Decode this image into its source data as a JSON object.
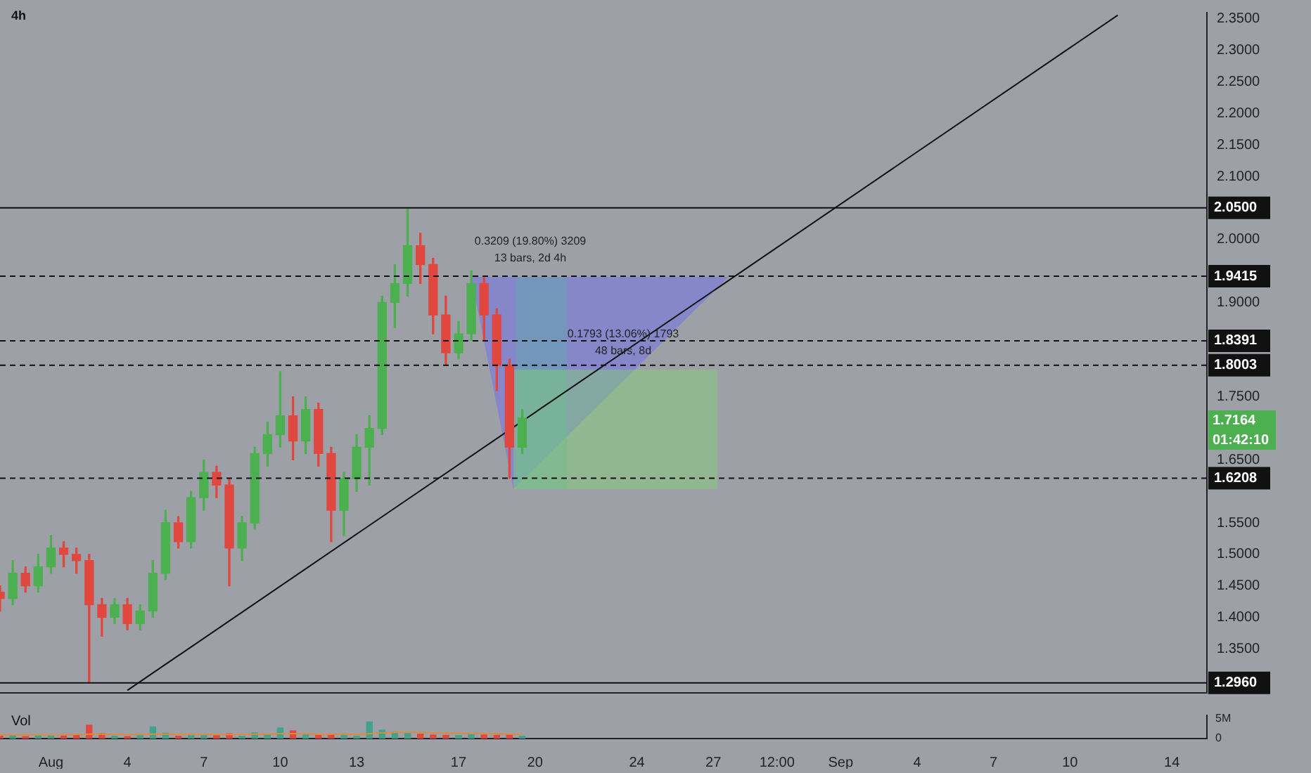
{
  "chart_data": [
    {
      "type": "candlestick",
      "title": "4h",
      "x": [
        "--07-30T00:00",
        "--07-30T12:00",
        "--07-31T00:00",
        "--07-31T12:00",
        "--08-01T00:00",
        "--08-01T12:00",
        "--08-02T00:00",
        "--08-02T12:00",
        "--08-03T00:00",
        "--08-03T12:00",
        "--08-04T00:00",
        "--08-04T12:00",
        "--08-05T00:00",
        "--08-05T12:00",
        "--08-06T00:00",
        "--08-06T12:00",
        "--08-07T00:00",
        "--08-07T12:00",
        "--08-08T00:00",
        "--08-08T12:00",
        "--08-09T00:00",
        "--08-09T12:00",
        "--08-10T00:00",
        "--08-10T12:00",
        "--08-11T00:00",
        "--08-11T12:00",
        "--08-12T00:00",
        "--08-12T12:00",
        "--08-13T00:00",
        "--08-13T12:00",
        "--08-14T00:00",
        "--08-14T12:00",
        "--08-15T00:00",
        "--08-15T12:00",
        "--08-16T00:00",
        "--08-16T12:00",
        "--08-17T00:00",
        "--08-17T12:00",
        "--08-18T00:00",
        "--08-18T12:00",
        "--08-19T00:00",
        "--08-19T12:00"
      ],
      "ohlc": [
        [
          1.44,
          1.45,
          1.41,
          1.43
        ],
        [
          1.43,
          1.49,
          1.42,
          1.47
        ],
        [
          1.47,
          1.48,
          1.44,
          1.45
        ],
        [
          1.45,
          1.5,
          1.44,
          1.48
        ],
        [
          1.48,
          1.53,
          1.47,
          1.51
        ],
        [
          1.51,
          1.52,
          1.48,
          1.5
        ],
        [
          1.5,
          1.51,
          1.47,
          1.49
        ],
        [
          1.49,
          1.5,
          1.296,
          1.42
        ],
        [
          1.42,
          1.43,
          1.37,
          1.4
        ],
        [
          1.4,
          1.43,
          1.39,
          1.42
        ],
        [
          1.42,
          1.43,
          1.38,
          1.39
        ],
        [
          1.39,
          1.42,
          1.38,
          1.41
        ],
        [
          1.41,
          1.49,
          1.4,
          1.47
        ],
        [
          1.47,
          1.57,
          1.46,
          1.55
        ],
        [
          1.55,
          1.56,
          1.51,
          1.52
        ],
        [
          1.52,
          1.6,
          1.51,
          1.59
        ],
        [
          1.59,
          1.65,
          1.57,
          1.63
        ],
        [
          1.63,
          1.64,
          1.59,
          1.61
        ],
        [
          1.61,
          1.62,
          1.45,
          1.51
        ],
        [
          1.51,
          1.56,
          1.49,
          1.55
        ],
        [
          1.55,
          1.67,
          1.54,
          1.66
        ],
        [
          1.66,
          1.71,
          1.64,
          1.69
        ],
        [
          1.69,
          1.79,
          1.67,
          1.72
        ],
        [
          1.72,
          1.75,
          1.65,
          1.68
        ],
        [
          1.68,
          1.75,
          1.66,
          1.73
        ],
        [
          1.73,
          1.74,
          1.64,
          1.66
        ],
        [
          1.66,
          1.67,
          1.52,
          1.57
        ],
        [
          1.57,
          1.63,
          1.53,
          1.62
        ],
        [
          1.62,
          1.69,
          1.6,
          1.67
        ],
        [
          1.67,
          1.72,
          1.61,
          1.7
        ],
        [
          1.7,
          1.91,
          1.69,
          1.9
        ],
        [
          1.9,
          1.96,
          1.86,
          1.93
        ],
        [
          1.93,
          2.05,
          1.91,
          1.99
        ],
        [
          1.99,
          2.01,
          1.93,
          1.96
        ],
        [
          1.96,
          1.97,
          1.85,
          1.88
        ],
        [
          1.88,
          1.91,
          1.8,
          1.82
        ],
        [
          1.82,
          1.87,
          1.81,
          1.85
        ],
        [
          1.85,
          1.95,
          1.84,
          1.93
        ],
        [
          1.93,
          1.94,
          1.84,
          1.88
        ],
        [
          1.88,
          1.89,
          1.76,
          1.8
        ],
        [
          1.8,
          1.81,
          1.6208,
          1.67
        ],
        [
          1.67,
          1.73,
          1.66,
          1.7164
        ]
      ],
      "colors": [
        "#e0483f",
        "#4caf50",
        "#e0483f",
        "#4caf50",
        "#4caf50",
        "#e0483f",
        "#e0483f",
        "#e0483f",
        "#e0483f",
        "#4caf50",
        "#e0483f",
        "#4caf50",
        "#4caf50",
        "#4caf50",
        "#e0483f",
        "#4caf50",
        "#4caf50",
        "#e0483f",
        "#e0483f",
        "#4caf50",
        "#4caf50",
        "#4caf50",
        "#4caf50",
        "#e0483f",
        "#4caf50",
        "#e0483f",
        "#e0483f",
        "#4caf50",
        "#4caf50",
        "#4caf50",
        "#4caf50",
        "#4caf50",
        "#4caf50",
        "#e0483f",
        "#e0483f",
        "#e0483f",
        "#4caf50",
        "#4caf50",
        "#e0483f",
        "#e0483f",
        "#e0483f",
        "#4caf50"
      ],
      "series": [
        {
          "type": "line",
          "color": "#111111",
          "x": [
            "--08-04T00:00",
            "--09-11T21:00"
          ],
          "values": [
            1.284,
            2.356
          ]
        }
      ],
      "xlim": [
        "--07-30T00:00",
        "--09-15T09:00"
      ],
      "ylim": [
        1.28,
        2.36
      ],
      "yticks": [
        {
          "value": 2.35,
          "label": "2.3500"
        },
        {
          "value": 2.3,
          "label": "2.3000"
        },
        {
          "value": 2.25,
          "label": "2.2500"
        },
        {
          "value": 2.2,
          "label": "2.2000"
        },
        {
          "value": 2.15,
          "label": "2.1500"
        },
        {
          "value": 2.1,
          "label": "2.1000"
        },
        {
          "value": 2.0,
          "label": "2.0000"
        },
        {
          "value": 1.9,
          "label": "1.9000"
        },
        {
          "value": 1.75,
          "label": "1.7500"
        },
        {
          "value": 1.65,
          "label": "1.6500"
        },
        {
          "value": 1.55,
          "label": "1.5500"
        },
        {
          "value": 1.5,
          "label": "1.5000"
        },
        {
          "value": 1.45,
          "label": "1.4500"
        },
        {
          "value": 1.4,
          "label": "1.4000"
        },
        {
          "value": 1.35,
          "label": "1.3500"
        }
      ],
      "tick_labels": "y",
      "ref_lines": [
        {
          "axis": "y",
          "value": 2.05,
          "label": "2.0500",
          "line_style": "solid",
          "color": "#111111"
        },
        {
          "axis": "y",
          "value": 1.9415,
          "label": "1.9415",
          "line_style": "dashed",
          "color": "#111111"
        },
        {
          "axis": "y",
          "value": 1.8391,
          "label": "1.8391",
          "line_style": "dashed",
          "color": "#111111"
        },
        {
          "axis": "y",
          "value": 1.8003,
          "label": "1.8003",
          "line_style": "dashed",
          "color": "#111111"
        },
        {
          "axis": "y",
          "value": 1.6208,
          "label": "1.6208",
          "line_style": "dashed",
          "color": "#111111"
        },
        {
          "axis": "y",
          "value": 1.296,
          "label": "1.2960",
          "line_style": "solid",
          "color": "#111111"
        }
      ],
      "annotations": [
        "0.3209 (19.80%) 3209",
        "13 bars, 2d 4h",
        "0.1793 (13.06%) 1793",
        "48 bars, 8d",
        "1.7164",
        "01:42:10"
      ]
    },
    {
      "type": "bar",
      "title": "Vol",
      "x": [
        "--07-30T00:00",
        "--07-30T12:00",
        "--07-31T00:00",
        "--07-31T12:00",
        "--08-01T00:00",
        "--08-01T12:00",
        "--08-02T00:00",
        "--08-02T12:00",
        "--08-03T00:00",
        "--08-03T12:00",
        "--08-04T00:00",
        "--08-04T12:00",
        "--08-05T00:00",
        "--08-05T12:00",
        "--08-06T00:00",
        "--08-06T12:00",
        "--08-07T00:00",
        "--08-07T12:00",
        "--08-08T00:00",
        "--08-08T12:00",
        "--08-09T00:00",
        "--08-09T12:00",
        "--08-10T00:00",
        "--08-10T12:00",
        "--08-11T00:00",
        "--08-11T12:00",
        "--08-12T00:00",
        "--08-12T12:00",
        "--08-13T00:00",
        "--08-13T12:00",
        "--08-14T00:00",
        "--08-14T12:00",
        "--08-15T00:00",
        "--08-15T12:00",
        "--08-16T00:00",
        "--08-16T12:00",
        "--08-17T00:00",
        "--08-17T12:00",
        "--08-18T00:00",
        "--08-18T12:00",
        "--08-19T00:00",
        "--08-19T12:00"
      ],
      "values": [
        0.6,
        0.8,
        0.5,
        0.7,
        0.9,
        0.7,
        0.8,
        3.3,
        1.2,
        0.6,
        0.5,
        0.9,
        2.9,
        1.3,
        0.6,
        1.0,
        0.8,
        0.7,
        1.2,
        0.6,
        1.4,
        1.0,
        2.6,
        1.9,
        0.9,
        0.8,
        1.1,
        0.9,
        0.6,
        4.1,
        2.1,
        1.6,
        1.4,
        1.1,
        0.9,
        0.8,
        0.7,
        1.0,
        0.9,
        0.8,
        1.1,
        0.6
      ],
      "colors": [
        "#e0483f",
        "#3fa38d",
        "#e0483f",
        "#3fa38d",
        "#3fa38d",
        "#e0483f",
        "#e0483f",
        "#e0483f",
        "#e0483f",
        "#3fa38d",
        "#e0483f",
        "#3fa38d",
        "#3fa38d",
        "#3fa38d",
        "#e0483f",
        "#3fa38d",
        "#3fa38d",
        "#e0483f",
        "#e0483f",
        "#3fa38d",
        "#3fa38d",
        "#3fa38d",
        "#3fa38d",
        "#e0483f",
        "#3fa38d",
        "#e0483f",
        "#e0483f",
        "#3fa38d",
        "#3fa38d",
        "#3fa38d",
        "#3fa38d",
        "#3fa38d",
        "#3fa38d",
        "#e0483f",
        "#e0483f",
        "#e0483f",
        "#3fa38d",
        "#3fa38d",
        "#e0483f",
        "#e0483f",
        "#e0483f",
        "#3fa38d"
      ],
      "series": [
        {
          "type": "line",
          "color": "#e08a3c",
          "values": [
            0.9,
            0.9,
            0.9,
            0.9,
            0.9,
            0.9,
            1.0,
            1.1,
            1.1,
            1.0,
            1.0,
            1.0,
            1.1,
            1.1,
            1.1,
            1.0,
            1.0,
            1.0,
            1.0,
            1.0,
            1.1,
            1.1,
            1.2,
            1.2,
            1.2,
            1.1,
            1.1,
            1.1,
            1.0,
            1.2,
            1.4,
            1.5,
            1.5,
            1.5,
            1.4,
            1.4,
            1.3,
            1.3,
            1.2,
            1.2,
            1.1,
            1.1
          ]
        }
      ],
      "xlim": [
        "--07-30T00:00",
        "--09-15T09:00"
      ],
      "xticks": [
        {
          "value": "--08-01",
          "label": "Aug"
        },
        {
          "value": "--08-04",
          "label": "4"
        },
        {
          "value": "--08-07",
          "label": "7"
        },
        {
          "value": "--08-10",
          "label": "10"
        },
        {
          "value": "--08-13",
          "label": "13"
        },
        {
          "value": "--08-17",
          "label": "17"
        },
        {
          "value": "--08-20",
          "label": "20"
        },
        {
          "value": "--08-24",
          "label": "24"
        },
        {
          "value": "--08-27",
          "label": "27"
        },
        {
          "value": "--08-29T12:00",
          "label": "12:00"
        },
        {
          "value": "--09-01",
          "label": "Sep"
        },
        {
          "value": "--09-04",
          "label": "4"
        },
        {
          "value": "--09-07",
          "label": "7"
        },
        {
          "value": "--09-10",
          "label": "10"
        },
        {
          "value": "--09-14",
          "label": "14"
        }
      ],
      "ylim": [
        0,
        5.8
      ],
      "yticks": [
        {
          "value": 5,
          "label": "5M"
        },
        0
      ]
    }
  ]
}
